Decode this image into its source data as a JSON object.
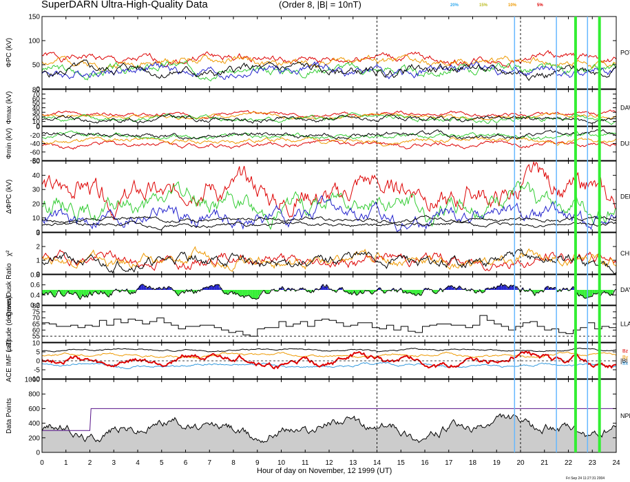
{
  "header": {
    "title": "SuperDARN Ultra-High-Quality Data",
    "subtitle": "(Order 8, |B| = 10nT)",
    "legend": [
      {
        "label": "20%",
        "color": "#33aaee"
      },
      {
        "label": "15%",
        "color": "#bbbb22"
      },
      {
        "label": "10%",
        "color": "#ee9900"
      },
      {
        "label": "5%",
        "color": "#dd0000"
      }
    ]
  },
  "footer": {
    "xlabel": "Hour of day on November, 12 1999 (UT)",
    "timestamp": "Fri Sep 24 11:27:31 2004"
  },
  "chart_data": {
    "type": "line",
    "x_ticks": [
      0,
      1,
      2,
      3,
      4,
      5,
      6,
      7,
      8,
      9,
      10,
      11,
      12,
      13,
      14,
      15,
      16,
      17,
      18,
      19,
      20,
      21,
      22,
      23,
      24
    ],
    "xlim": [
      0,
      24
    ],
    "dashed_lines_x": [
      14,
      20
    ],
    "highlights": [
      {
        "x": 19.75,
        "color": "#66b8ff",
        "width": "thin"
      },
      {
        "x": 21.5,
        "color": "#66b8ff",
        "width": "thin"
      },
      {
        "x": 22.3,
        "color": "#33ee33",
        "width": "thick"
      },
      {
        "x": 22.8,
        "color": "#66b8ff",
        "width": "thin"
      },
      {
        "x": 23.3,
        "color": "#33ee33",
        "width": "thick"
      }
    ],
    "panels": [
      {
        "id": "phi_pc",
        "ylabel": "ΦPC (kV)",
        "ylim": [
          0,
          150
        ],
        "ticks": [
          0,
          50,
          100,
          150
        ],
        "right_label": "POT / POT",
        "series": [
          {
            "color": "#dd0000",
            "base": 62,
            "amp": 9,
            "noise": 6,
            "seed": 1
          },
          {
            "color": "#ee9900",
            "base": 56,
            "amp": 8,
            "noise": 6,
            "seed": 2
          },
          {
            "color": "#33cc33",
            "base": 40,
            "amp": 9,
            "noise": 7,
            "seed": 3
          },
          {
            "color": "#2222cc",
            "base": 37,
            "amp": 9,
            "noise": 7,
            "seed": 4
          },
          {
            "color": "#000000",
            "base": 38,
            "amp": 9,
            "noise": 7,
            "seed": 5
          }
        ]
      },
      {
        "id": "phi_max",
        "ylabel": "Φmax (kV)",
        "ylim": [
          0,
          80
        ],
        "ticks": [
          0,
          10,
          20,
          30,
          40,
          50,
          60,
          70,
          80
        ],
        "right_label": "DAW",
        "series": [
          {
            "color": "#dd0000",
            "base": 26,
            "amp": 4,
            "noise": 3,
            "seed": 6
          },
          {
            "color": "#ee9900",
            "base": 22,
            "amp": 4,
            "noise": 3,
            "seed": 7
          },
          {
            "color": "#33cc33",
            "base": 16,
            "amp": 4,
            "noise": 4,
            "seed": 8
          },
          {
            "color": "#000000",
            "base": 15,
            "amp": 4,
            "noise": 4,
            "seed": 9
          }
        ]
      },
      {
        "id": "phi_min",
        "ylabel": "Φmin (kV)",
        "ylim": [
          -80,
          0
        ],
        "ticks": [
          -80,
          -60,
          -40,
          -20,
          0
        ],
        "right_label": "DUS",
        "series": [
          {
            "color": "#dd0000",
            "base": -42,
            "amp": 5,
            "noise": 4,
            "seed": 10
          },
          {
            "color": "#ee9900",
            "base": -33,
            "amp": 5,
            "noise": 4,
            "seed": 11
          },
          {
            "color": "#33cc33",
            "base": -22,
            "amp": 5,
            "noise": 4,
            "seed": 12
          },
          {
            "color": "#000000",
            "base": -20,
            "amp": 5,
            "noise": 4,
            "seed": 13
          }
        ]
      },
      {
        "id": "delta_phi",
        "ylabel": "ΔΦPC (kV)",
        "ylim": [
          0,
          50
        ],
        "ticks": [
          0,
          10,
          20,
          30,
          40,
          50
        ],
        "right_label": "DEL",
        "series": [
          {
            "color": "#dd0000",
            "base": 28,
            "amp": 9,
            "noise": 6,
            "seed": 14
          },
          {
            "color": "#33cc33",
            "base": 20,
            "amp": 8,
            "noise": 5,
            "seed": 15
          },
          {
            "color": "#2222cc",
            "base": 11,
            "amp": 5,
            "noise": 4,
            "seed": 16
          },
          {
            "color": "#000000",
            "base": 9,
            "amp": 1,
            "noise": 1,
            "seed": 17
          },
          {
            "color": "#000000",
            "base": 5,
            "amp": 1,
            "noise": 1,
            "seed": 18
          }
        ]
      },
      {
        "id": "chi2",
        "ylabel": "χ²",
        "ylim": [
          0,
          3
        ],
        "ticks": [
          0,
          1,
          2,
          3
        ],
        "right_label": "CHI",
        "series": [
          {
            "color": "#dd0000",
            "base": 1.0,
            "amp": 0.35,
            "noise": 0.3,
            "seed": 19
          },
          {
            "color": "#ee9900",
            "base": 1.0,
            "amp": 0.35,
            "noise": 0.3,
            "seed": 20
          },
          {
            "color": "#000000",
            "base": 0.95,
            "amp": 0.35,
            "noise": 0.3,
            "seed": 21
          }
        ]
      },
      {
        "id": "ratio",
        "ylabel": "Dawn/Dusk Ratio",
        "ylim": [
          0.2,
          0.8
        ],
        "ticks": [
          0.2,
          0.4,
          0.6,
          0.8
        ],
        "right_label": "DAY",
        "fill_ref": 0.5,
        "series": [
          {
            "color": "#000000",
            "base": 0.48,
            "amp": 0.06,
            "noise": 0.06,
            "seed": 22,
            "fill_above": "#2222cc",
            "fill_below": "#33ee33"
          }
        ]
      },
      {
        "id": "latitude",
        "ylabel": "Latitude (degrees)",
        "ylim": [
          50,
          80
        ],
        "ticks": [
          55,
          60,
          65,
          70,
          75,
          80
        ],
        "right_label": "LLA",
        "dashed_y": 55,
        "series": [
          {
            "color": "#000000",
            "base": 64,
            "amp": 4,
            "noise": 3,
            "seed": 23,
            "step": true
          }
        ]
      },
      {
        "id": "imf",
        "ylabel": "ACE IMF (nT)",
        "ylim": [
          -10,
          10
        ],
        "ticks": [
          -10,
          -5,
          0,
          5,
          10
        ],
        "right_label": "|B|",
        "dashed_y": 0,
        "right_legend": [
          {
            "label": "Bz",
            "color": "#dd0000"
          },
          {
            "label": "By",
            "color": "#ee9900"
          },
          {
            "label": "Bx",
            "color": "#3399dd"
          }
        ],
        "series": [
          {
            "color": "#000000",
            "base": 6,
            "amp": 0.7,
            "noise": 0.3,
            "seed": 24
          },
          {
            "color": "#ee9900",
            "base": 3,
            "amp": 1.2,
            "noise": 0.5,
            "seed": 25
          },
          {
            "color": "#3399dd",
            "base": -2.5,
            "amp": 1.2,
            "noise": 0.5,
            "seed": 26
          },
          {
            "color": "#dd0000",
            "base": 0,
            "amp": 3.5,
            "noise": 1.2,
            "seed": 27,
            "thick": true
          }
        ]
      },
      {
        "id": "datapoints",
        "ylabel": "Data Points",
        "ylim": [
          0,
          1000
        ],
        "ticks": [
          0,
          200,
          400,
          600,
          800,
          1000
        ],
        "right_label": "NPN",
        "series": [
          {
            "color": "#000000",
            "base": 330,
            "amp": 130,
            "noise": 50,
            "seed": 28,
            "fill": "#cccccc"
          },
          {
            "color": "#551188",
            "base": 600,
            "amp": 0,
            "noise": 0,
            "seed": 29,
            "step_profile": [
              [
                0,
                300
              ],
              [
                2,
                300
              ],
              [
                2.05,
                600
              ],
              [
                19,
                600
              ],
              [
                19.05,
                600
              ],
              [
                24,
                600
              ]
            ]
          }
        ]
      }
    ]
  }
}
